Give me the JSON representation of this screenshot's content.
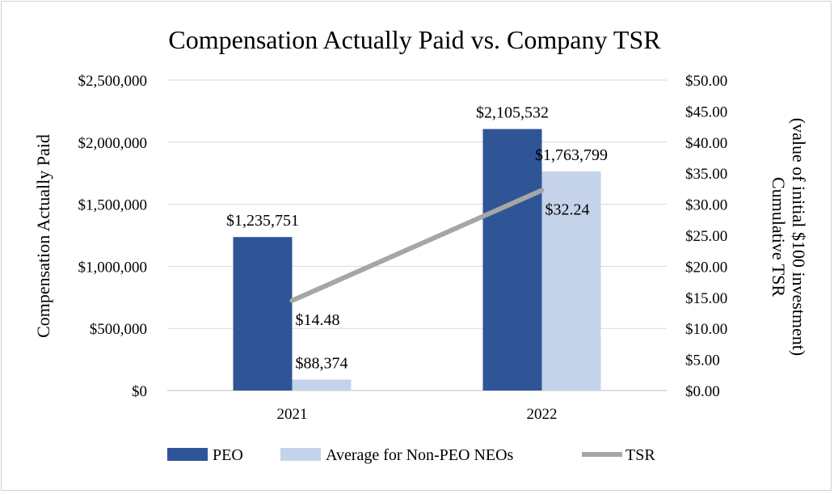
{
  "chart_data": {
    "type": "bar",
    "title": "Compensation Actually Paid vs. Company TSR",
    "categories": [
      "2021",
      "2022"
    ],
    "series": [
      {
        "name": "PEO",
        "type": "bar",
        "axis": "left",
        "color": "#2F5597",
        "values": [
          1235751,
          2105532
        ],
        "labels": [
          "$1,235,751",
          "$2,105,532"
        ]
      },
      {
        "name": "Average for Non-PEO NEOs",
        "type": "bar",
        "axis": "left",
        "color": "#C5D3EA",
        "values": [
          88374,
          1763799
        ],
        "labels": [
          "$88,374",
          "$1,763,799"
        ]
      },
      {
        "name": "TSR",
        "type": "line",
        "axis": "right",
        "color": "#A6A6A6",
        "values": [
          14.48,
          32.24
        ],
        "labels": [
          "$14.48",
          "$32.24"
        ]
      }
    ],
    "ylabel": "Compensation Actually Paid",
    "ylim": [
      0,
      2500000
    ],
    "yticks": [
      "$0",
      "$500,000",
      "$1,000,000",
      "$1,500,000",
      "$2,000,000",
      "$2,500,000"
    ],
    "y2label_line1": "Cumulative TSR",
    "y2label_line2": "(value of initial $100 investment)",
    "y2lim": [
      0,
      50
    ],
    "y2ticks": [
      "$0.00",
      "$5.00",
      "$10.00",
      "$15.00",
      "$20.00",
      "$25.00",
      "$30.00",
      "$35.00",
      "$40.00",
      "$45.00",
      "$50.00"
    ],
    "grid": true,
    "legend_position": "bottom"
  }
}
